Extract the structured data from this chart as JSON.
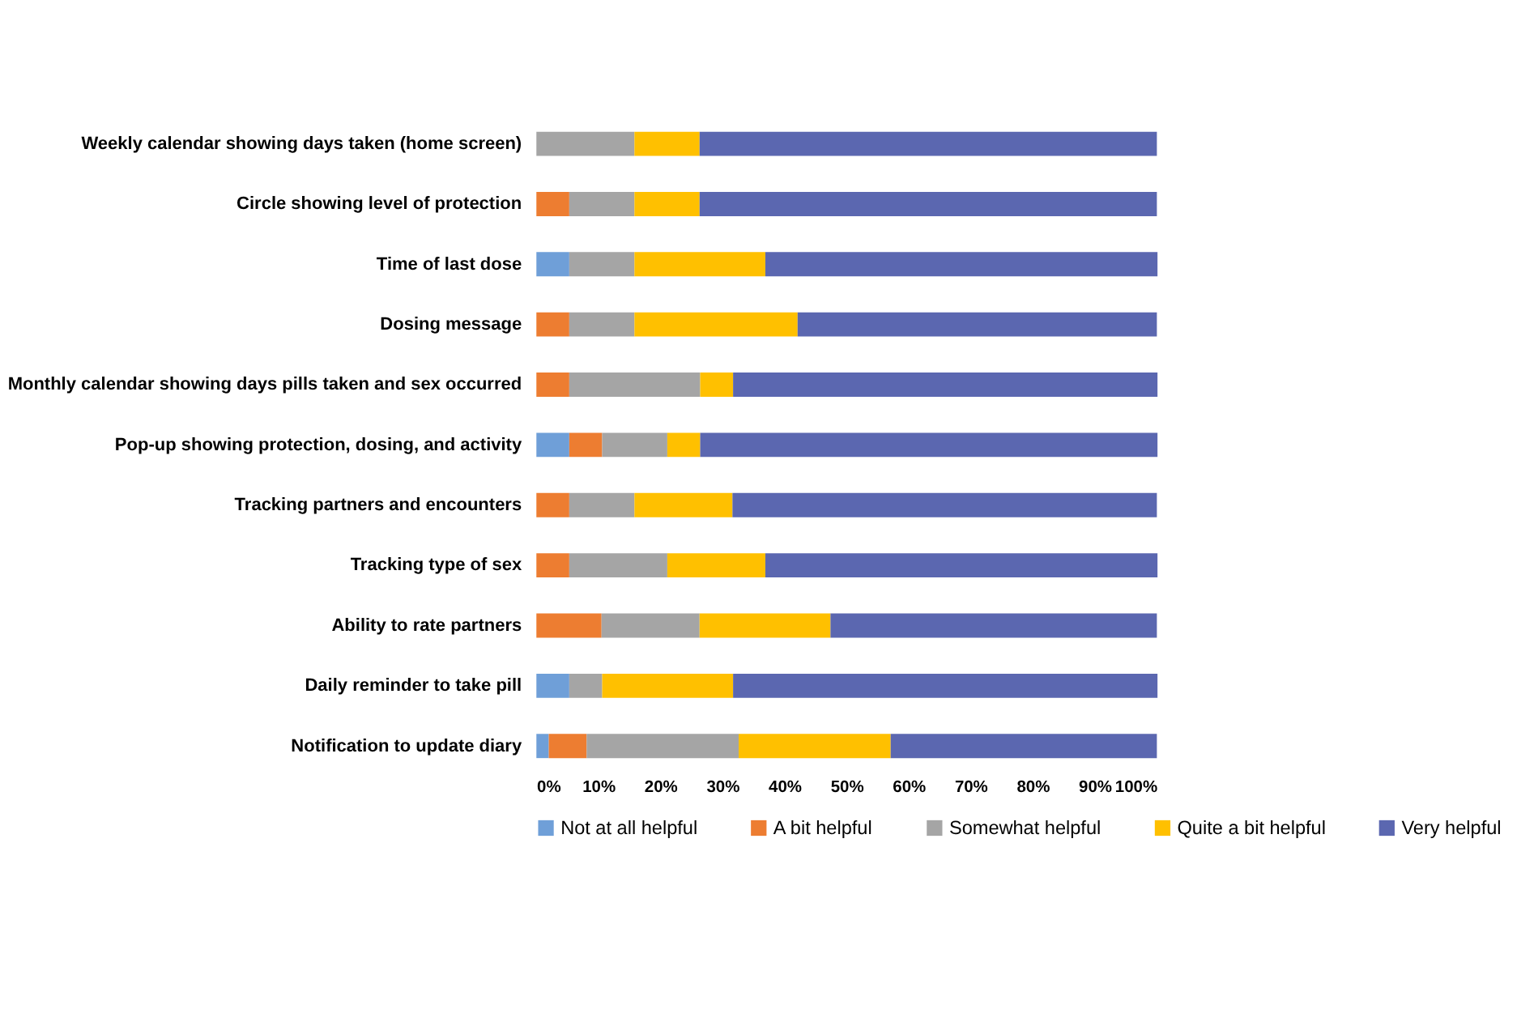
{
  "chart_data": {
    "type": "bar",
    "orientation": "horizontal",
    "stacked": true,
    "legend": "bottom",
    "grid": false,
    "categories": [
      "Weekly calendar showing days taken (home screen)",
      "Circle showing level of protection",
      "Time of last dose",
      "Dosing message",
      "Monthly calendar showing days pills taken and sex occurred",
      "Pop-up showing protection, dosing, and activity",
      "Tracking partners and encounters",
      "Tracking type of sex",
      "Ability to rate partners",
      "Daily reminder to take pill",
      "Notification to update diary"
    ],
    "series": [
      {
        "name": "Not at all helpful",
        "color": "#6f9fd8",
        "values": [
          0,
          0,
          5.3,
          0,
          0,
          5.3,
          0,
          0,
          0,
          5.3,
          2.0
        ]
      },
      {
        "name": "A bit helpful",
        "color": "#ed7d31",
        "values": [
          0,
          5.3,
          0,
          5.3,
          5.3,
          5.3,
          5.3,
          5.3,
          10.5,
          0,
          6.1
        ]
      },
      {
        "name": "Somewhat helpful",
        "color": "#a5a5a5",
        "values": [
          15.8,
          10.5,
          10.5,
          10.5,
          21.1,
          10.5,
          10.5,
          15.8,
          15.8,
          5.3,
          24.5
        ]
      },
      {
        "name": "Quite a bit helpful",
        "color": "#ffc000",
        "values": [
          10.5,
          10.5,
          21.1,
          26.3,
          5.3,
          5.3,
          15.8,
          15.8,
          21.1,
          21.1,
          24.5
        ]
      },
      {
        "name": "Very helpful",
        "color": "#5b67b0",
        "values": [
          73.7,
          73.7,
          63.2,
          57.9,
          68.4,
          73.7,
          68.4,
          63.2,
          52.6,
          68.4,
          42.9
        ]
      }
    ],
    "xlim": [
      0,
      100
    ],
    "xticks": [
      {
        "value": 0,
        "label": "0%"
      },
      {
        "value": 10,
        "label": "10%"
      },
      {
        "value": 20,
        "label": "20%"
      },
      {
        "value": 30,
        "label": "30%"
      },
      {
        "value": 40,
        "label": "40%"
      },
      {
        "value": 50,
        "label": "50%"
      },
      {
        "value": 60,
        "label": "60%"
      },
      {
        "value": 70,
        "label": "70%"
      },
      {
        "value": 80,
        "label": "80%"
      },
      {
        "value": 90,
        "label": "90%"
      },
      {
        "value": 100,
        "label": "100%"
      }
    ]
  }
}
